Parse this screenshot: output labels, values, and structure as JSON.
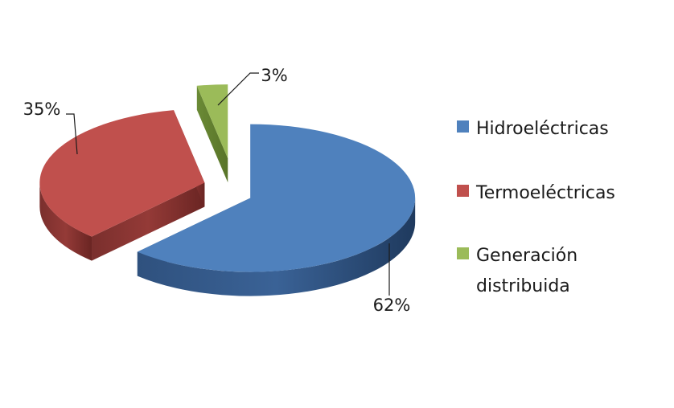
{
  "chart_data": {
    "type": "pie",
    "categories": [
      "Hidroeléctricas",
      "Termoeléctricas",
      "Generación distribuida"
    ],
    "values": [
      62,
      35,
      3
    ],
    "data_labels": [
      "62%",
      "35%",
      "3%"
    ],
    "title": "",
    "exploded": true,
    "three_d": true,
    "legend": {
      "placement": "right",
      "entries": [
        {
          "lines": [
            "Hidroeléctricas"
          ]
        },
        {
          "lines": [
            "Termoeléctricas"
          ]
        },
        {
          "lines": [
            "Generación",
            "distribuida"
          ]
        }
      ]
    },
    "colors": [
      "#4F81BD",
      "#C0504D",
      "#9BBB59"
    ]
  }
}
